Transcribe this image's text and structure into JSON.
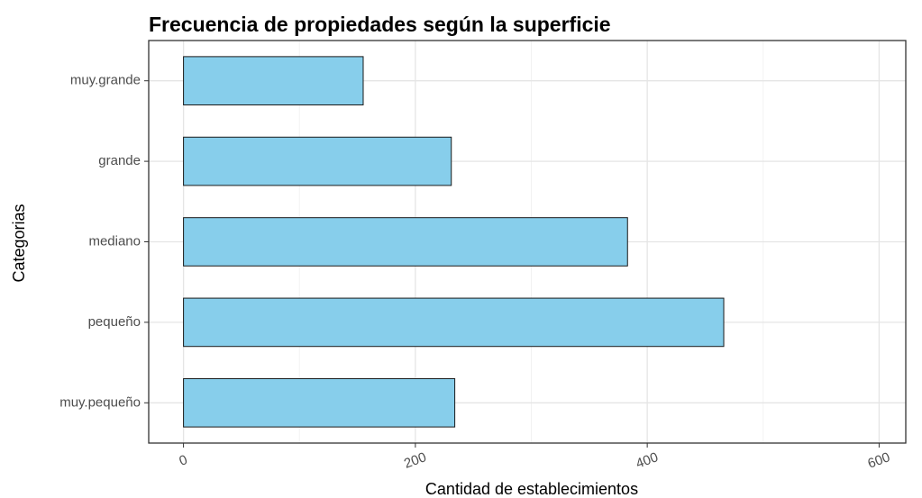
{
  "chart_data": {
    "type": "bar",
    "orientation": "horizontal",
    "title": "Frecuencia de propiedades según la superficie",
    "xlabel": "Cantidad de establecimientos",
    "ylabel": "Categorias",
    "categories": [
      "muy.pequeño",
      "pequeño",
      "mediano",
      "grande",
      "muy.grande"
    ],
    "values": [
      234,
      466,
      383,
      231,
      155
    ],
    "color": "#87ceeb",
    "xlim": [
      -30,
      623
    ],
    "xticks": [
      0,
      200,
      400,
      600
    ],
    "xticks_minor": [
      100,
      300,
      500
    ],
    "grid": true
  }
}
